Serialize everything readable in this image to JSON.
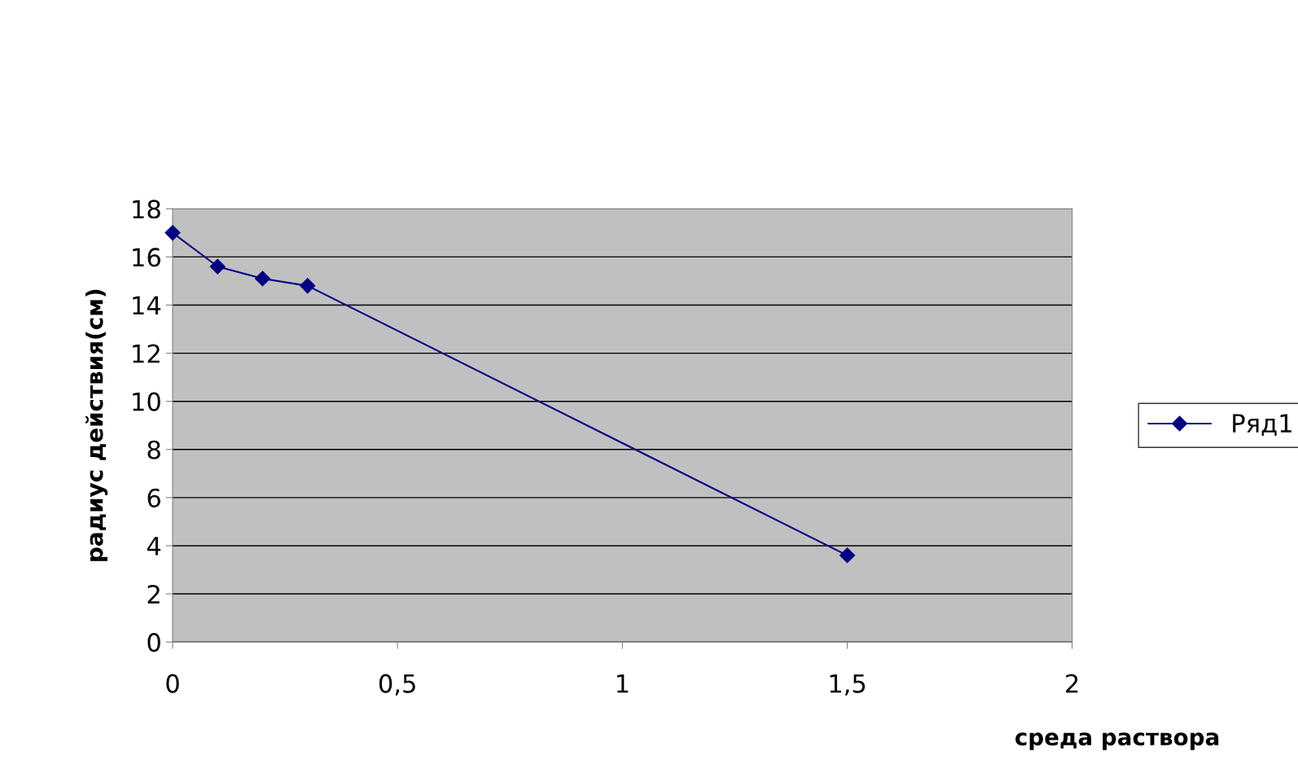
{
  "chart_data": {
    "type": "line",
    "xlabel": "среда раствора",
    "ylabel": "радиус действия(см)",
    "x": [
      0,
      0.1,
      0.2,
      0.3,
      1.5
    ],
    "series": [
      {
        "name": "Ряд1",
        "color": "#000080",
        "values": [
          17,
          15.6,
          15.1,
          14.8,
          3.6
        ]
      }
    ],
    "xlim": [
      0,
      2
    ],
    "xticks": [
      0,
      {
        "value": 0.5,
        "label": "0,5"
      },
      1,
      {
        "value": 1.5,
        "label": "1,5"
      },
      2
    ],
    "ylim": [
      0,
      18
    ],
    "yticks": [
      0,
      2,
      4,
      6,
      8,
      10,
      12,
      14,
      16,
      18
    ],
    "grid": "y",
    "legend": "right",
    "marker": "diamond",
    "line_style": "solid"
  }
}
